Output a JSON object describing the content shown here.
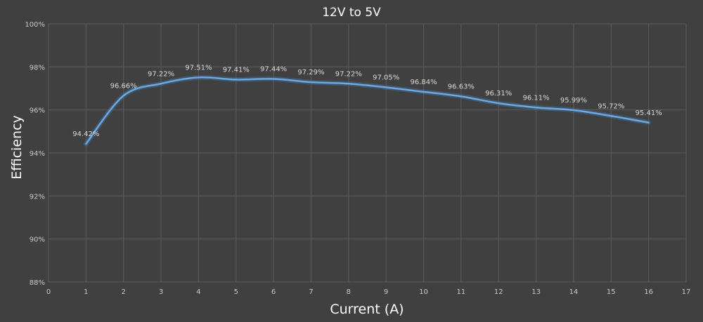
{
  "chart_data": {
    "type": "line",
    "title": "12V to 5V",
    "xlabel": "Current (A)",
    "ylabel": "Efficiency",
    "xlim": [
      0,
      17
    ],
    "ylim": [
      88,
      100
    ],
    "x_ticks": [
      0,
      1,
      2,
      3,
      4,
      5,
      6,
      7,
      8,
      9,
      10,
      11,
      12,
      13,
      14,
      15,
      16,
      17
    ],
    "y_ticks": [
      88,
      90,
      92,
      94,
      96,
      98,
      100
    ],
    "y_tick_labels": [
      "88%",
      "90%",
      "92%",
      "94%",
      "96%",
      "98%",
      "100%"
    ],
    "grid": true,
    "smooth": true,
    "line_color": "#6fa8dc",
    "background_color": "#404040",
    "series": [
      {
        "x": [
          1,
          2,
          3,
          4,
          5,
          6,
          7,
          8,
          9,
          10,
          11,
          12,
          13,
          14,
          15,
          16
        ],
        "values": [
          94.42,
          96.66,
          97.22,
          97.51,
          97.41,
          97.44,
          97.29,
          97.22,
          97.05,
          96.84,
          96.63,
          96.31,
          96.11,
          95.99,
          95.72,
          95.41
        ],
        "data_labels": [
          "94.42%",
          "96.66%",
          "97.22%",
          "97.51%",
          "97.41%",
          "97.44%",
          "97.29%",
          "97.22%",
          "97.05%",
          "96.84%",
          "96.63%",
          "96.31%",
          "96.11%",
          "95.99%",
          "95.72%",
          "95.41%"
        ]
      }
    ]
  }
}
